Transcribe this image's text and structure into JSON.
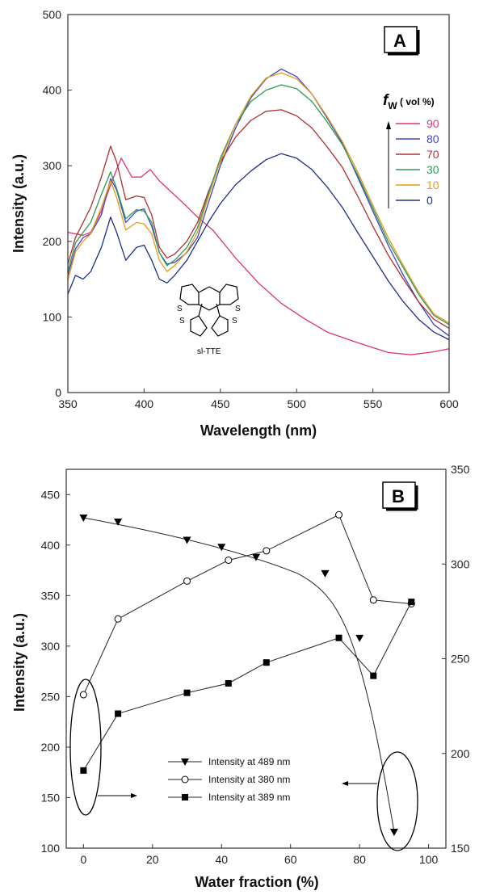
{
  "chart_data": [
    {
      "panel": "A",
      "type": "line",
      "xlabel": "Wavelength (nm)",
      "ylabel": "Intensity (a.u.)",
      "xlim": [
        350,
        600
      ],
      "ylim": [
        0,
        500
      ],
      "xticks": [
        350,
        400,
        450,
        500,
        550,
        600
      ],
      "yticks": [
        0,
        100,
        200,
        300,
        400,
        500
      ],
      "legend_title_f": "f",
      "legend_title_sub": "W",
      "legend_title_rest": " ( vol %)",
      "legend_placement": "right",
      "molecule_label": "sl-TTE",
      "molecule_atom": "S",
      "series": [
        {
          "name": "90",
          "color": "#e0307a",
          "x": [
            350,
            360,
            365,
            372,
            378,
            385,
            392,
            398,
            404,
            410,
            418,
            426,
            435,
            445,
            460,
            475,
            490,
            505,
            520,
            540,
            560,
            575,
            590,
            600
          ],
          "y": [
            212,
            208,
            212,
            240,
            275,
            310,
            285,
            285,
            295,
            280,
            265,
            250,
            232,
            215,
            178,
            145,
            118,
            98,
            80,
            66,
            53,
            50,
            54,
            58
          ]
        },
        {
          "name": "80",
          "color": "#3c46c8",
          "x": [
            350,
            355,
            360,
            365,
            372,
            378,
            382,
            388,
            395,
            400,
            405,
            410,
            415,
            420,
            428,
            435,
            442,
            450,
            460,
            470,
            480,
            490,
            500,
            510,
            520,
            530,
            540,
            550,
            560,
            570,
            580,
            590,
            600
          ],
          "y": [
            155,
            190,
            205,
            210,
            235,
            283,
            268,
            225,
            240,
            243,
            220,
            185,
            170,
            172,
            185,
            205,
            250,
            300,
            350,
            390,
            415,
            428,
            418,
            395,
            363,
            330,
            285,
            240,
            195,
            155,
            120,
            90,
            75
          ]
        },
        {
          "name": "70",
          "color": "#b03030",
          "x": [
            350,
            355,
            360,
            365,
            372,
            378,
            382,
            388,
            395,
            400,
            405,
            410,
            415,
            420,
            428,
            435,
            442,
            450,
            460,
            470,
            480,
            490,
            500,
            510,
            520,
            530,
            540,
            550,
            560,
            570,
            580,
            590,
            600
          ],
          "y": [
            170,
            205,
            225,
            245,
            285,
            326,
            305,
            255,
            260,
            258,
            235,
            192,
            178,
            183,
            200,
            225,
            265,
            305,
            338,
            360,
            372,
            374,
            366,
            350,
            325,
            298,
            260,
            220,
            182,
            150,
            120,
            97,
            85
          ]
        },
        {
          "name": "30",
          "color": "#2e9a52",
          "x": [
            350,
            355,
            360,
            365,
            372,
            378,
            382,
            388,
            395,
            400,
            405,
            410,
            415,
            420,
            428,
            435,
            442,
            450,
            460,
            470,
            480,
            490,
            500,
            510,
            520,
            530,
            540,
            550,
            560,
            570,
            580,
            590,
            600
          ],
          "y": [
            160,
            198,
            212,
            225,
            262,
            292,
            270,
            230,
            242,
            240,
            225,
            185,
            168,
            175,
            192,
            218,
            262,
            310,
            355,
            385,
            400,
            407,
            402,
            385,
            358,
            328,
            288,
            244,
            200,
            165,
            130,
            102,
            90
          ]
        },
        {
          "name": "10",
          "color": "#e79a1a",
          "x": [
            350,
            355,
            360,
            365,
            372,
            378,
            382,
            388,
            395,
            400,
            405,
            410,
            415,
            420,
            428,
            435,
            442,
            450,
            460,
            470,
            480,
            490,
            500,
            510,
            520,
            530,
            540,
            550,
            560,
            570,
            580,
            590,
            600
          ],
          "y": [
            148,
            186,
            200,
            210,
            245,
            280,
            258,
            215,
            225,
            223,
            210,
            175,
            160,
            168,
            186,
            212,
            258,
            306,
            355,
            392,
            416,
            423,
            415,
            395,
            365,
            332,
            292,
            248,
            205,
            168,
            133,
            104,
            92
          ]
        },
        {
          "name": "0",
          "color": "#1d2d8f",
          "x": [
            350,
            355,
            360,
            365,
            372,
            378,
            382,
            388,
            395,
            400,
            405,
            410,
            415,
            420,
            428,
            435,
            442,
            450,
            460,
            470,
            480,
            490,
            500,
            510,
            520,
            530,
            540,
            550,
            560,
            570,
            580,
            590,
            600
          ],
          "y": [
            130,
            155,
            150,
            160,
            192,
            232,
            212,
            175,
            192,
            195,
            175,
            150,
            145,
            155,
            175,
            200,
            225,
            250,
            275,
            293,
            308,
            316,
            310,
            295,
            272,
            245,
            212,
            180,
            148,
            120,
            97,
            80,
            70
          ]
        }
      ]
    },
    {
      "panel": "B",
      "type": "line",
      "xlabel": "Water fraction (%)",
      "ylabel": "Intensity (a.u.)",
      "xlim": [
        -5,
        105
      ],
      "ylim": [
        100,
        475
      ],
      "y2lim": [
        150,
        350
      ],
      "xticks": [
        0,
        20,
        40,
        60,
        80,
        100
      ],
      "yticks": [
        100,
        150,
        200,
        250,
        300,
        350,
        400,
        450
      ],
      "y2ticks": [
        150,
        200,
        250,
        300,
        350
      ],
      "legend_placement": "bottom-center",
      "series": [
        {
          "name": "Intensity at 489 nm",
          "axis": "left",
          "marker": "triangle-down",
          "x": [
            0,
            10,
            30,
            40,
            50,
            70,
            80,
            90
          ],
          "y": [
            427,
            423,
            405,
            398,
            388,
            372,
            308,
            116
          ]
        },
        {
          "name": "Intensity at 380 nm",
          "axis": "right",
          "marker": "circle-open",
          "x": [
            0,
            10,
            30,
            42,
            53,
            74,
            84,
            95
          ],
          "y": [
            231,
            271,
            291,
            302,
            307,
            326,
            281,
            279
          ]
        },
        {
          "name": "Intensity at 389 nm",
          "axis": "right",
          "marker": "square",
          "x": [
            0,
            10,
            30,
            42,
            53,
            74,
            84,
            95
          ],
          "y": [
            191,
            221,
            232,
            237,
            248,
            261,
            241,
            280
          ]
        }
      ]
    }
  ]
}
